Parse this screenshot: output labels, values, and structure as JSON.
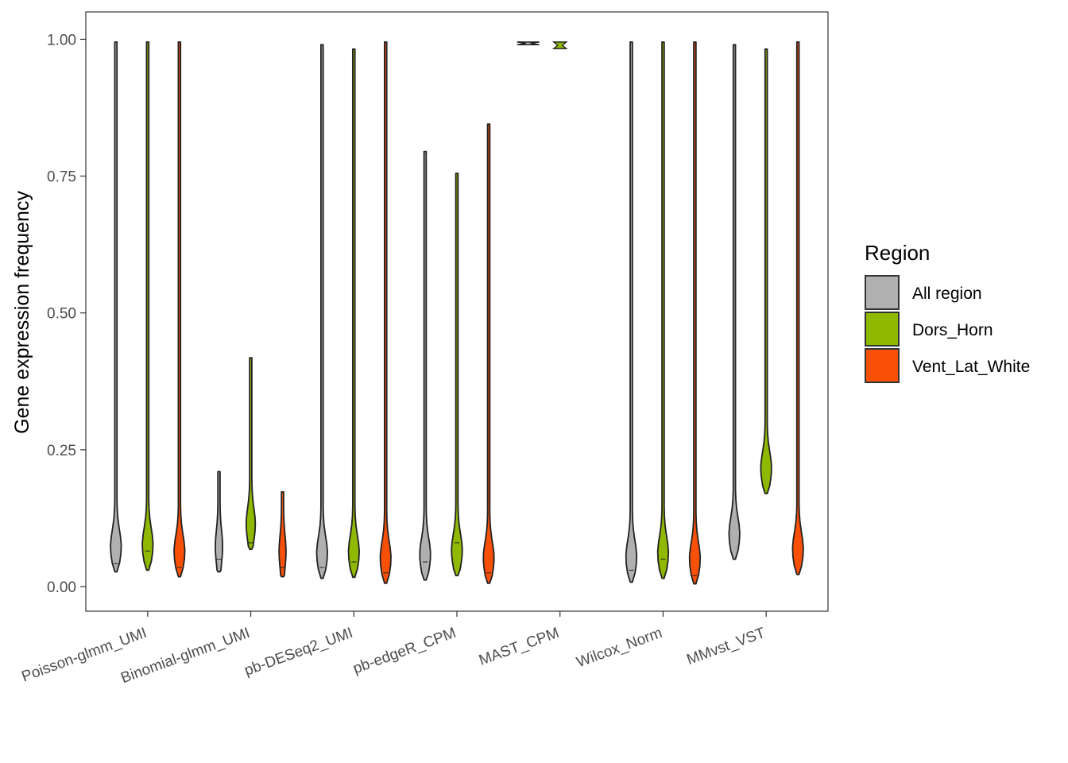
{
  "chart_data": {
    "type": "violin",
    "ylabel": "Gene expression frequency",
    "ylim": [
      -0.045,
      1.05
    ],
    "y_ticks": [
      "0.00",
      "0.25",
      "0.50",
      "0.75",
      "1.00"
    ],
    "grid": false,
    "categories": [
      "Poisson-glmm_UMI",
      "Binomial-glmm_UMI",
      "pb-DESeq2_UMI",
      "pb-edgeR_CPM",
      "MAST_CPM",
      "Wilcox_Norm",
      "MMvst_VST"
    ],
    "legend": {
      "title": "Region",
      "placement": "right",
      "entries": [
        {
          "name": "All region",
          "color": "#b0b0b0"
        },
        {
          "name": "Dors_Horn",
          "color": "#8fb800"
        },
        {
          "name": "Vent_Lat_White",
          "color": "#f95008"
        }
      ]
    },
    "series": [
      {
        "name": "All region",
        "color": "#b0b0b0",
        "ranges": [
          [
            0.027,
            0.995
          ],
          [
            0.027,
            0.21
          ],
          [
            0.015,
            0.99
          ],
          [
            0.012,
            0.795
          ],
          [
            0.99,
            0.995
          ],
          [
            0.008,
            0.995
          ],
          [
            0.05,
            0.99
          ]
        ],
        "medians": [
          0.042,
          0.05,
          0.035,
          0.045,
          0.992,
          0.03,
          null
        ]
      },
      {
        "name": "Dors_Horn",
        "color": "#8fb800",
        "ranges": [
          [
            0.03,
            0.995
          ],
          [
            0.068,
            0.418
          ],
          [
            0.017,
            0.982
          ],
          [
            0.02,
            0.755
          ],
          [
            0.983,
            0.995
          ],
          [
            0.015,
            0.995
          ],
          [
            0.17,
            0.982
          ]
        ],
        "medians": [
          0.065,
          0.08,
          0.045,
          0.08,
          0.989,
          0.05,
          null
        ]
      },
      {
        "name": "Vent_Lat_White",
        "color": "#f95008",
        "ranges": [
          [
            0.018,
            0.995
          ],
          [
            0.018,
            0.173
          ],
          [
            0.006,
            0.995
          ],
          [
            0.006,
            0.845
          ],
          [
            null,
            null
          ],
          [
            0.005,
            0.995
          ],
          [
            0.022,
            0.995
          ]
        ],
        "medians": [
          0.035,
          0.035,
          0.025,
          0.025,
          null,
          0.02,
          null
        ]
      }
    ]
  }
}
